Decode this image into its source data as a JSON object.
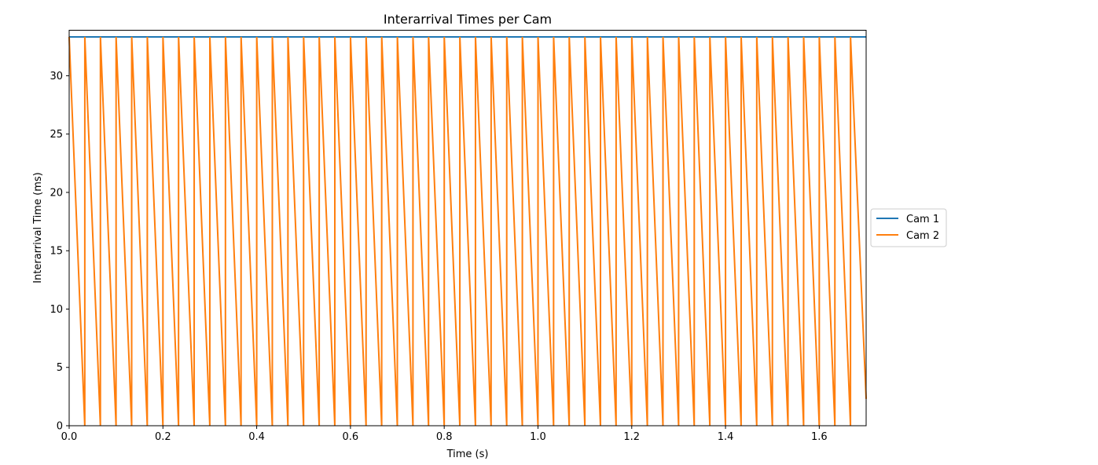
{
  "chart_data": {
    "type": "line",
    "title": "Interarrival Times per Cam",
    "xlabel": "Time (s)",
    "ylabel": "Interarrival Time (ms)",
    "xlim": [
      0,
      1.7
    ],
    "ylim": [
      0,
      33.9
    ],
    "x_ticks": [
      0.0,
      0.2,
      0.4,
      0.6,
      0.8,
      1.0,
      1.2,
      1.4,
      1.6
    ],
    "x_tick_labels": [
      "0.0",
      "0.2",
      "0.4",
      "0.6",
      "0.8",
      "1.0",
      "1.2",
      "1.4",
      "1.6"
    ],
    "y_ticks": [
      0,
      5,
      10,
      15,
      20,
      25,
      30
    ],
    "y_tick_labels": [
      "0",
      "5",
      "10",
      "15",
      "20",
      "25",
      "30"
    ],
    "grid": false,
    "legend_position": "right-outside",
    "series": [
      {
        "name": "Cam 1",
        "color": "#1f77b4",
        "x": [
          0.0,
          1.7
        ],
        "y": [
          33.33,
          33.33
        ]
      },
      {
        "name": "Cam 2",
        "color": "#ff7f0e",
        "x": [
          0.0,
          0.0333,
          0.0334,
          0.0666,
          0.0667,
          0.1,
          0.1001,
          0.1333,
          0.1334,
          0.1666,
          0.1667,
          0.2,
          0.2001,
          0.2333,
          0.2334,
          0.2666,
          0.2667,
          0.3,
          0.3001,
          0.3333,
          0.3334,
          0.3666,
          0.3667,
          0.4,
          0.4001,
          0.4333,
          0.4334,
          0.4666,
          0.4667,
          0.5,
          0.5001,
          0.5333,
          0.5334,
          0.5666,
          0.5667,
          0.6,
          0.6001,
          0.6333,
          0.6334,
          0.6666,
          0.6667,
          0.7,
          0.7001,
          0.7333,
          0.7334,
          0.7666,
          0.7667,
          0.8,
          0.8001,
          0.8333,
          0.8334,
          0.8666,
          0.8667,
          0.9,
          0.9001,
          0.9333,
          0.9334,
          0.9666,
          0.9667,
          1.0,
          1.0001,
          1.0333,
          1.0334,
          1.0666,
          1.0667,
          1.1,
          1.1001,
          1.1333,
          1.1334,
          1.1666,
          1.1667,
          1.2,
          1.2001,
          1.2333,
          1.2334,
          1.2666,
          1.2667,
          1.3,
          1.3001,
          1.3333,
          1.3334,
          1.3666,
          1.3667,
          1.4,
          1.4001,
          1.4333,
          1.4334,
          1.4666,
          1.4667,
          1.5,
          1.5001,
          1.5333,
          1.5334,
          1.5666,
          1.5667,
          1.6,
          1.6001,
          1.6333,
          1.6334,
          1.6666,
          1.6667,
          1.7
        ],
        "y": [
          33.33,
          0.0,
          33.33,
          0.0,
          33.33,
          0.0,
          33.33,
          0.0,
          33.33,
          0.0,
          33.33,
          0.0,
          33.33,
          0.0,
          33.33,
          0.0,
          33.33,
          0.0,
          33.33,
          0.0,
          33.33,
          0.0,
          33.33,
          0.0,
          33.33,
          0.0,
          33.33,
          0.0,
          33.33,
          0.0,
          33.33,
          0.0,
          33.33,
          0.0,
          33.33,
          0.0,
          33.33,
          0.0,
          33.33,
          0.0,
          33.33,
          0.0,
          33.33,
          0.0,
          33.33,
          0.0,
          33.33,
          0.0,
          33.33,
          0.0,
          33.33,
          0.0,
          33.33,
          0.0,
          33.33,
          0.0,
          33.33,
          0.0,
          33.33,
          0.0,
          33.33,
          0.0,
          33.33,
          0.0,
          33.33,
          0.0,
          33.33,
          0.0,
          33.33,
          0.0,
          33.33,
          0.0,
          33.33,
          0.0,
          33.33,
          0.0,
          33.33,
          0.0,
          33.33,
          0.0,
          33.33,
          0.0,
          33.33,
          0.0,
          33.33,
          0.0,
          33.33,
          0.0,
          33.33,
          0.0,
          33.33,
          0.0,
          33.33,
          0.0,
          33.33,
          0.0,
          33.33,
          0.0,
          33.33,
          0.0,
          33.33,
          2.3
        ]
      }
    ]
  }
}
